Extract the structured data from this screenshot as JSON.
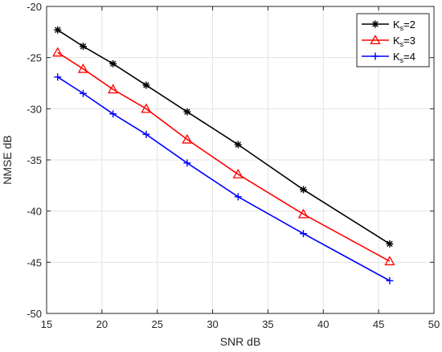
{
  "chart_data": {
    "type": "line",
    "title": "",
    "xlabel": "SNR dB",
    "ylabel": "NMSE dB",
    "xlim": [
      15,
      50
    ],
    "ylim": [
      -50,
      -20
    ],
    "xticks": [
      15,
      20,
      25,
      30,
      35,
      40,
      45,
      50
    ],
    "yticks": [
      -50,
      -45,
      -40,
      -35,
      -30,
      -25,
      -20
    ],
    "grid": true,
    "legend_position": "top-right",
    "x": [
      16,
      18.3,
      21,
      24,
      27.7,
      32.3,
      38.2,
      46
    ],
    "series": [
      {
        "name": "K_s=2",
        "legend_main": "K",
        "legend_sub": "s",
        "legend_rest": "=2",
        "color": "#000000",
        "marker": "asterisk",
        "values": [
          -22.3,
          -23.9,
          -25.6,
          -27.7,
          -30.3,
          -33.5,
          -37.9,
          -43.2
        ]
      },
      {
        "name": "K_s=3",
        "legend_main": "K",
        "legend_sub": "s",
        "legend_rest": "=3",
        "color": "#ff0000",
        "marker": "triangle",
        "values": [
          -24.5,
          -26.1,
          -28.1,
          -30.0,
          -33.0,
          -36.4,
          -40.3,
          -44.9
        ]
      },
      {
        "name": "K_s=4",
        "legend_main": "K",
        "legend_sub": "s",
        "legend_rest": "=4",
        "color": "#0000ff",
        "marker": "plus",
        "values": [
          -26.9,
          -28.5,
          -30.5,
          -32.5,
          -35.3,
          -38.6,
          -42.2,
          -46.8
        ]
      }
    ]
  }
}
